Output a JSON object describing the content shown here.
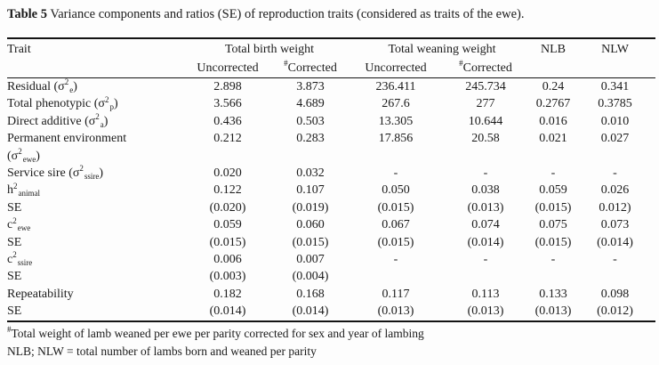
{
  "title": {
    "bold": "Table 5",
    "rest": " Variance components and ratios (SE) of reproduction traits (considered as traits of the ewe)."
  },
  "table": {
    "header": {
      "trait": "Trait",
      "groups": [
        {
          "label": "Total birth weight"
        },
        {
          "label": "Total weaning weight"
        }
      ],
      "sub": [
        {
          "marker": "",
          "label": "Uncorrected"
        },
        {
          "marker": "#",
          "label": "Corrected"
        },
        {
          "marker": "",
          "label": "Uncorrected"
        },
        {
          "marker": "#",
          "label": "Corrected"
        }
      ],
      "singles": [
        {
          "label": "NLB"
        },
        {
          "label": "NLW"
        }
      ]
    },
    "rows": [
      {
        "label": [
          {
            "t": "Residual (σ"
          },
          {
            "t": "2",
            "s": "sup"
          },
          {
            "t": "e",
            "s": "sub"
          },
          {
            "t": ")"
          }
        ],
        "values": [
          "2.898",
          "3.873",
          "236.411",
          "245.734",
          "0.24",
          "0.341"
        ]
      },
      {
        "label": [
          {
            "t": "Total phenotypic (σ"
          },
          {
            "t": "2",
            "s": "sup"
          },
          {
            "t": "p",
            "s": "sub"
          },
          {
            "t": ")"
          }
        ],
        "values": [
          "3.566",
          "4.689",
          "267.6",
          "277",
          "0.2767",
          "0.3785"
        ]
      },
      {
        "label": [
          {
            "t": "Direct additive (σ"
          },
          {
            "t": "2",
            "s": "sup"
          },
          {
            "t": "a",
            "s": "sub"
          },
          {
            "t": ")"
          }
        ],
        "values": [
          "0.436",
          "0.503",
          "13.305",
          "10.644",
          "0.016",
          "0.010"
        ]
      },
      {
        "label": [
          {
            "t": "Permanent environment"
          },
          {
            "s": "br"
          },
          {
            "t": "(σ"
          },
          {
            "t": "2",
            "s": "sup"
          },
          {
            "t": "ewe",
            "s": "sub"
          },
          {
            "t": ")"
          }
        ],
        "values": [
          "0.212",
          "0.283",
          "17.856",
          "20.58",
          "0.021",
          "0.027"
        ]
      },
      {
        "label": [
          {
            "t": "Service sire (σ"
          },
          {
            "t": "2",
            "s": "sup"
          },
          {
            "t": "ssire",
            "s": "sub"
          },
          {
            "t": ")"
          }
        ],
        "values": [
          "0.020",
          "0.032",
          "-",
          "-",
          "-",
          "-"
        ]
      },
      {
        "label": [
          {
            "t": "h"
          },
          {
            "t": "2",
            "s": "sup"
          },
          {
            "t": "animal",
            "s": "sub"
          }
        ],
        "values": [
          "0.122",
          "0.107",
          "0.050",
          "0.038",
          "0.059",
          "0.026"
        ]
      },
      {
        "label": [
          {
            "t": "SE"
          }
        ],
        "values": [
          "(0.020)",
          "(0.019)",
          "(0.015)",
          "(0.013)",
          "(0.015)",
          "0.012)"
        ]
      },
      {
        "label": [
          {
            "t": "c"
          },
          {
            "t": "2",
            "s": "sup"
          },
          {
            "t": "ewe",
            "s": "sub"
          }
        ],
        "values": [
          "0.059",
          "0.060",
          "0.067",
          "0.074",
          "0.075",
          "0.073"
        ]
      },
      {
        "label": [
          {
            "t": "SE"
          }
        ],
        "values": [
          "(0.015)",
          "(0.015)",
          "(0.015)",
          "(0.014)",
          "(0.015)",
          "(0.014)"
        ]
      },
      {
        "label": [
          {
            "t": "c"
          },
          {
            "t": "2",
            "s": "sup"
          },
          {
            "t": "ssire",
            "s": "sub"
          }
        ],
        "values": [
          "0.006",
          "0.007",
          "-",
          "-",
          "-",
          "-"
        ]
      },
      {
        "label": [
          {
            "t": "SE"
          }
        ],
        "values": [
          "(0.003)",
          "(0.004)",
          "",
          "",
          "",
          ""
        ]
      },
      {
        "label": [
          {
            "t": "Repeatability"
          }
        ],
        "values": [
          "0.182",
          "0.168",
          "0.117",
          "0.113",
          "0.133",
          "0.098"
        ]
      },
      {
        "label": [
          {
            "t": "SE"
          }
        ],
        "values": [
          "(0.014)",
          "(0.014)",
          "(0.013)",
          "(0.013)",
          "(0.013)",
          "(0.012)"
        ]
      }
    ]
  },
  "footnotes": [
    {
      "marker": "#",
      "text": "Total weight of lamb weaned per ewe per parity corrected for sex and year of lambing"
    },
    {
      "marker": "",
      "text": "NLB; NLW = total number of lambs born and weaned per parity"
    }
  ]
}
